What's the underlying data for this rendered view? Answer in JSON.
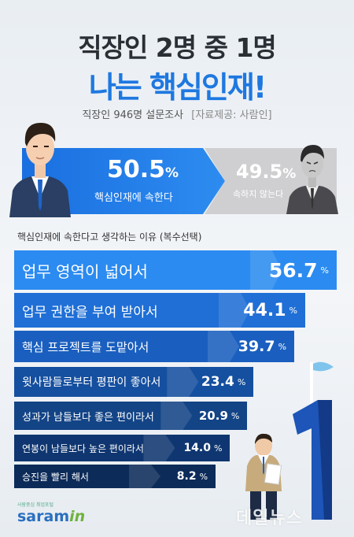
{
  "title_line1": "직장인 2명 중 1명",
  "title_line2": "나는 핵심인재!",
  "survey": "직장인 946명 설문조사",
  "source": "[자료제공: 사람인]",
  "split": {
    "yes_value": "50.5",
    "yes_unit": "%",
    "yes_label": "핵심인재에 속한다",
    "no_value": "49.5",
    "no_unit": "%",
    "no_label": "속하지 않는다",
    "yes_color": "#1a6fe0",
    "no_color": "#cfcfd1"
  },
  "question": "핵심인재에 속한다고 생각하는 이유 (복수선택)",
  "chart_data": {
    "type": "bar",
    "title": "핵심인재에 속한다고 생각하는 이유 (복수선택)",
    "unit": "%",
    "categories": [
      "업무 영역이 넓어서",
      "업무 권한을 부여 받아서",
      "핵심 프로젝트를 도맡아서",
      "윗사람들로부터 평판이 좋아서",
      "성과가 남들보다 좋은 편이라서",
      "연봉이 남들보다 높은 편이라서",
      "승진을 빨리 해서"
    ],
    "values": [
      56.7,
      44.1,
      39.7,
      23.4,
      20.9,
      14.0,
      8.2
    ],
    "labels": [
      "56.7",
      "44.1",
      "39.7",
      "23.4",
      "20.9",
      "14.0",
      "8.2"
    ],
    "colors": [
      "#2b8bf0",
      "#1f6fd6",
      "#1a5fbf",
      "#154f9f",
      "#134486",
      "#0f3670",
      "#0c2b59"
    ]
  },
  "logo": {
    "sub": "사람중심 취업포털",
    "name": "saram",
    "name_suffix": "in"
  },
  "watermark": "데일뉴스",
  "icons": {
    "flag": "flag-icon",
    "number": "number-one-icon",
    "person_yes": "confident-man-icon",
    "person_no": "worried-man-icon",
    "person_bottom": "man-holding-paper-icon"
  }
}
